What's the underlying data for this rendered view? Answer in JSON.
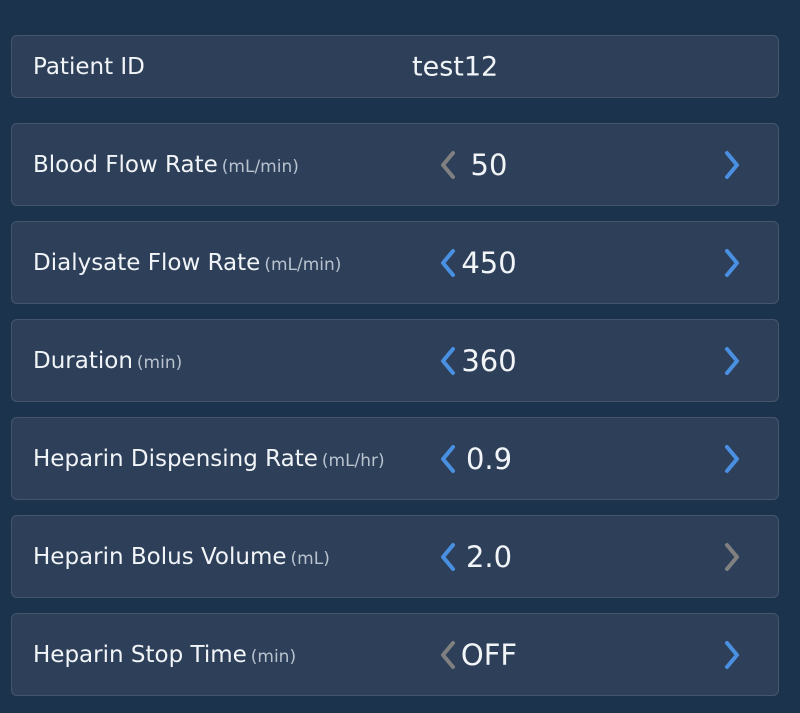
{
  "colors": {
    "background": "#1c334d",
    "card": "#2e4059",
    "enabled_arrow": "#4a90e2",
    "disabled_arrow": "#808080"
  },
  "patient": {
    "label": "Patient ID",
    "value": "test12"
  },
  "settings": [
    {
      "label": "Blood Flow Rate",
      "unit": "(mL/min)",
      "value": "50",
      "decrease_enabled": false,
      "increase_enabled": true
    },
    {
      "label": "Dialysate Flow Rate",
      "unit": "(mL/min)",
      "value": "450",
      "decrease_enabled": true,
      "increase_enabled": true
    },
    {
      "label": "Duration",
      "unit": "(min)",
      "value": "360",
      "decrease_enabled": true,
      "increase_enabled": true
    },
    {
      "label": "Heparin Dispensing Rate",
      "unit": "(mL/hr)",
      "value": "0.9",
      "decrease_enabled": true,
      "increase_enabled": true
    },
    {
      "label": "Heparin Bolus Volume",
      "unit": "(mL)",
      "value": "2.0",
      "decrease_enabled": true,
      "increase_enabled": false
    },
    {
      "label": "Heparin Stop Time",
      "unit": "(min)",
      "value": "OFF",
      "decrease_enabled": false,
      "increase_enabled": true
    }
  ]
}
